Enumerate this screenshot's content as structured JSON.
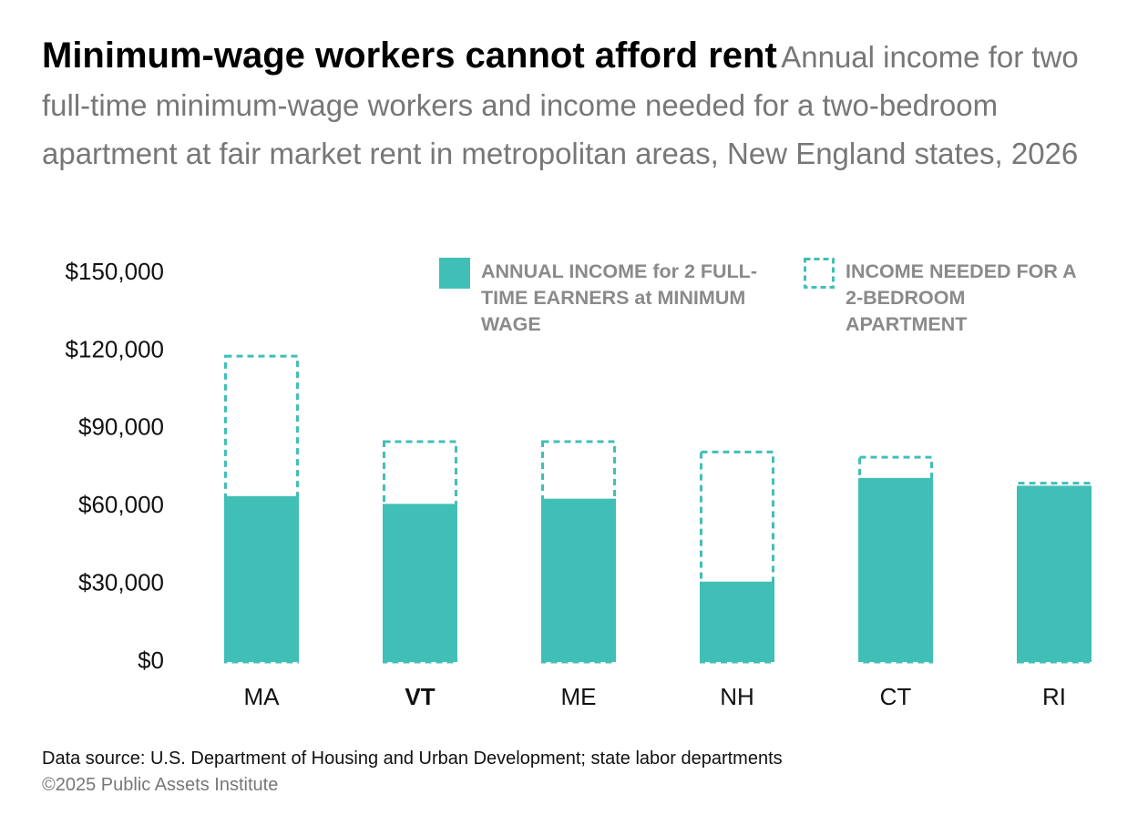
{
  "chart_data": {
    "type": "bar",
    "title": "Minimum-wage workers cannot afford rent",
    "subtitle": "Annual income for two full-time minimum-wage workers and income needed for a two-bedroom apartment at fair market rent in metropolitan areas, New England states, 2026",
    "categories": [
      "MA",
      "VT",
      "ME",
      "NH",
      "CT",
      "RI"
    ],
    "highlight": "VT",
    "series": [
      {
        "name": "ANNUAL INCOME for 2 FULL-TIME EARNERS at MINIMUM WAGE",
        "color": "#40bfb7",
        "style": "solid",
        "values": [
          64000,
          61000,
          63000,
          31000,
          71000,
          68000
        ]
      },
      {
        "name": "INCOME NEEDED FOR A 2-BEDROOM APARTMENT",
        "color": "#40bfb7",
        "style": "dashed",
        "values": [
          118000,
          85000,
          85000,
          81000,
          79000,
          69000
        ]
      }
    ],
    "ylim": [
      0,
      150000
    ],
    "yticks": [
      {
        "value": 0,
        "label": "$0"
      },
      {
        "value": 30000,
        "label": "$30,000"
      },
      {
        "value": 60000,
        "label": "$60,000"
      },
      {
        "value": 90000,
        "label": "$90,000"
      },
      {
        "value": 120000,
        "label": "$120,000"
      },
      {
        "value": 150000,
        "label": "$150,000"
      }
    ],
    "grid": false,
    "source": "Data source: U.S. Department of Housing and Urban Development; state labor departments",
    "copyright": "©2025 Public Assets Institute"
  }
}
